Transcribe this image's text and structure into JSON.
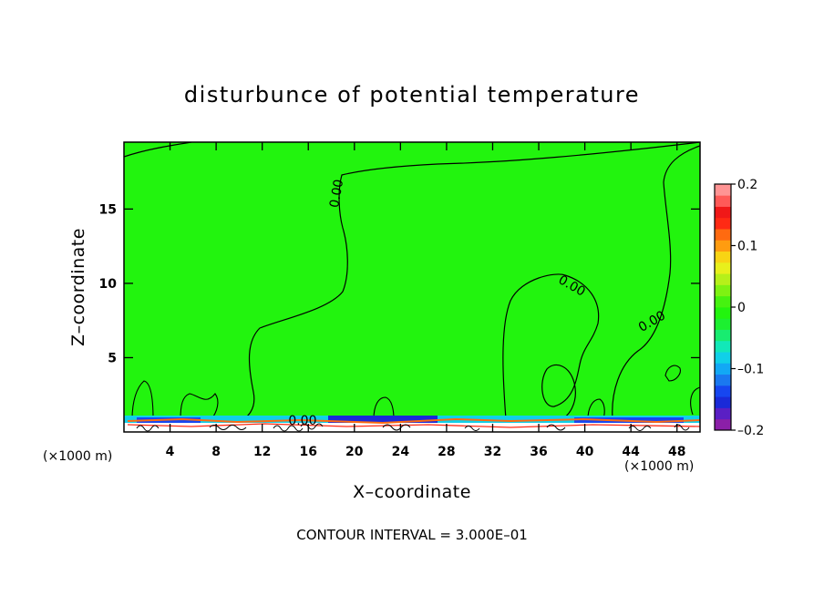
{
  "chart_data": {
    "type": "heatmap",
    "title": "disturbunce of potential temperature",
    "xlabel": "X–coordinate",
    "ylabel": "Z–coordinate",
    "x_unit_left": "(×1000 m)",
    "x_unit_right": "(×1000 m)",
    "xlim": [
      0,
      50
    ],
    "ylim": [
      0,
      19.5
    ],
    "x_ticks": [
      {
        "value": 4,
        "label": "4"
      },
      {
        "value": 8,
        "label": "8"
      },
      {
        "value": 12,
        "label": "12"
      },
      {
        "value": 16,
        "label": "16"
      },
      {
        "value": 20,
        "label": "20"
      },
      {
        "value": 24,
        "label": "24"
      },
      {
        "value": 28,
        "label": "28"
      },
      {
        "value": 32,
        "label": "32"
      },
      {
        "value": 36,
        "label": "36"
      },
      {
        "value": 40,
        "label": "40"
      },
      {
        "value": 44,
        "label": "44"
      },
      {
        "value": 48,
        "label": "48"
      }
    ],
    "y_ticks": [
      {
        "value": 5,
        "label": "5"
      },
      {
        "value": 10,
        "label": "10"
      },
      {
        "value": 15,
        "label": "15"
      }
    ],
    "colorbar": {
      "range": [
        -0.2,
        0.2
      ],
      "ticks": [
        {
          "value": 0.2,
          "label": "0.2"
        },
        {
          "value": 0.1,
          "label": "0.1"
        },
        {
          "value": 0,
          "label": "0"
        },
        {
          "value": -0.1,
          "label": "–0.1"
        },
        {
          "value": -0.2,
          "label": "–0.2"
        }
      ],
      "colors": [
        "#8b1fa8",
        "#5a1fc4",
        "#1a2ad8",
        "#1646f0",
        "#1a78f0",
        "#12a8f5",
        "#10d0e8",
        "#12e8b8",
        "#18ec70",
        "#1cf030",
        "#22f40e",
        "#46f210",
        "#7ef212",
        "#b6f01a",
        "#e8f01c",
        "#f8d414",
        "#ff9c10",
        "#ff6a10",
        "#ff2a14",
        "#f01818",
        "#ff5a58",
        "#ff9494"
      ]
    },
    "background_color": "#22f40e",
    "contour_labels": [
      {
        "x": 18.8,
        "z": 16,
        "text": "0.00"
      },
      {
        "x": 38.7,
        "z": 9.6,
        "text": "0.00"
      },
      {
        "x": 46.0,
        "z": 7.2,
        "text": "0.00"
      },
      {
        "x": 15.5,
        "z": 0.5,
        "text": "0.00"
      }
    ],
    "footer": "CONTOUR INTERVAL = 3.000E–01"
  }
}
